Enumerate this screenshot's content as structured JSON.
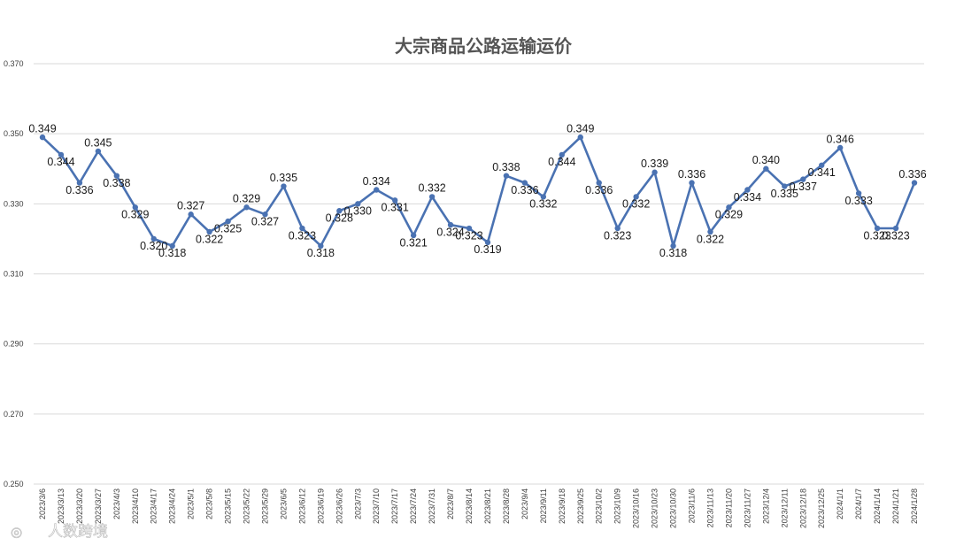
{
  "watermark": "人数跨境",
  "colors": {
    "series": "#4a72b2",
    "grid": "#d9d9d9"
  },
  "chart_data": {
    "type": "line",
    "title": "大宗商品公路运输运价",
    "xlabel": "",
    "ylabel": "",
    "ylim": [
      0.25,
      0.37
    ],
    "yticks": [
      "0.250",
      "0.270",
      "0.290",
      "0.310",
      "0.330",
      "0.350",
      "0.370"
    ],
    "grid": true,
    "legend": "none",
    "x": [
      "2023/3/6",
      "2023/3/13",
      "2023/3/20",
      "2023/3/27",
      "2023/4/3",
      "2023/4/10",
      "2023/4/17",
      "2023/4/24",
      "2023/5/1",
      "2023/5/8",
      "2023/5/15",
      "2023/5/22",
      "2023/5/29",
      "2023/6/5",
      "2023/6/12",
      "2023/6/19",
      "2023/6/26",
      "2023/7/3",
      "2023/7/10",
      "2023/7/17",
      "2023/7/24",
      "2023/7/31",
      "2023/8/7",
      "2023/8/14",
      "2023/8/21",
      "2023/8/28",
      "2023/9/4",
      "2023/9/11",
      "2023/9/18",
      "2023/9/25",
      "2023/10/2",
      "2023/10/9",
      "2023/10/16",
      "2023/10/23",
      "2023/10/30",
      "2023/11/6",
      "2023/11/13",
      "2023/11/20",
      "2023/11/27",
      "2023/12/4",
      "2023/12/11",
      "2023/12/18",
      "2023/12/25",
      "2024/1/1",
      "2024/1/7",
      "2024/1/14",
      "2024/1/21",
      "2024/1/28"
    ],
    "series": [
      {
        "values": [
          0.349,
          0.344,
          0.336,
          0.345,
          0.338,
          0.329,
          0.32,
          0.318,
          0.327,
          0.322,
          0.325,
          0.329,
          0.327,
          0.335,
          0.323,
          0.318,
          0.328,
          0.33,
          0.334,
          0.331,
          0.321,
          0.332,
          0.324,
          0.323,
          0.319,
          0.338,
          0.336,
          0.332,
          0.344,
          0.349,
          0.336,
          0.323,
          0.332,
          0.339,
          0.318,
          0.336,
          0.322,
          0.329,
          0.334,
          0.34,
          0.335,
          0.337,
          0.341,
          0.346,
          0.333,
          0.323,
          0.323,
          0.336
        ],
        "data_labels": [
          "0.349",
          "0.344",
          "0.336",
          "0.345",
          "0.338",
          "0.329",
          "0.320",
          "0.318",
          "0.327",
          "0.322",
          "0.325",
          "0.329",
          "0.327",
          "0.335",
          "0.323",
          "0.318",
          "0.328",
          "0.330",
          "0.334",
          "0.331",
          "0.321",
          "0.332",
          "0.324",
          "0.323",
          "0.319",
          "0.338",
          "0.336",
          "0.332",
          "0.344",
          "0.349",
          "0.336",
          "0.323",
          "0.332",
          "0.339",
          "0.318",
          "0.336",
          "0.322",
          "0.329",
          "0.334",
          "0.340",
          "0.335",
          "0.337",
          "0.341",
          "0.346",
          "0.333",
          "0.323",
          "0.323",
          "0.336"
        ]
      }
    ]
  }
}
